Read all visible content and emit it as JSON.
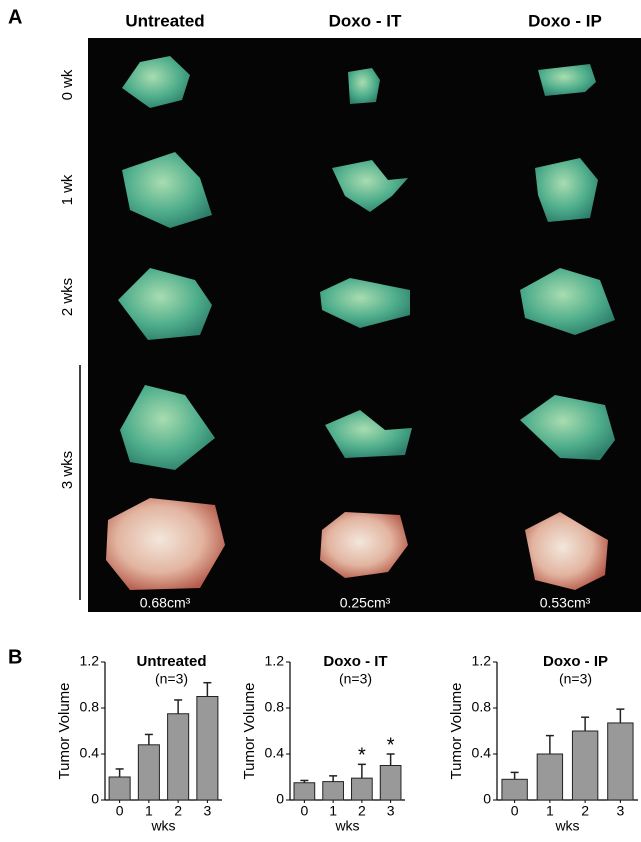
{
  "panel_a": {
    "label": "A",
    "columns": [
      "Untreated",
      "Doxo - IT",
      "Doxo - IP"
    ],
    "rows": [
      "0 wk",
      "1 wk",
      "2 wks",
      "3 wks"
    ],
    "volumes": [
      "0.68cm³",
      "0.25cm³",
      "0.53cm³"
    ]
  },
  "panel_b": {
    "label": "B"
  },
  "chart_data": [
    {
      "type": "bar",
      "title": "Untreated",
      "subtitle": "(n=3)",
      "ylabel": "Tumor Volume",
      "xlabel": "wks",
      "categories": [
        "0",
        "1",
        "2",
        "3"
      ],
      "values": [
        0.2,
        0.48,
        0.75,
        0.9
      ],
      "errors": [
        0.07,
        0.09,
        0.12,
        0.12
      ],
      "color": "#999999",
      "ylim": [
        0,
        1.2
      ],
      "yticks": [
        0,
        0.4,
        0.8,
        1.2
      ]
    },
    {
      "type": "bar",
      "title": "Doxo - IT",
      "subtitle": "(n=3)",
      "ylabel": "Tumor Volume",
      "xlabel": "wks",
      "categories": [
        "0",
        "1",
        "2",
        "3"
      ],
      "values": [
        0.15,
        0.16,
        0.19,
        0.3
      ],
      "errors": [
        0.02,
        0.05,
        0.12,
        0.1
      ],
      "color": "#999999",
      "ylim": [
        0,
        1.2
      ],
      "yticks": [
        0,
        0.4,
        0.8,
        1.2
      ],
      "annotations": [
        {
          "text": "*",
          "x": "2"
        },
        {
          "text": "*",
          "x": "3"
        }
      ]
    },
    {
      "type": "bar",
      "title": "Doxo - IP",
      "subtitle": "(n=3)",
      "ylabel": "Tumor Volume",
      "xlabel": "wks",
      "categories": [
        "0",
        "1",
        "2",
        "3"
      ],
      "values": [
        0.18,
        0.4,
        0.6,
        0.67
      ],
      "errors": [
        0.06,
        0.16,
        0.12,
        0.12
      ],
      "color": "#999999",
      "ylim": [
        0,
        1.2
      ],
      "yticks": [
        0,
        0.4,
        0.8,
        1.2
      ]
    }
  ]
}
